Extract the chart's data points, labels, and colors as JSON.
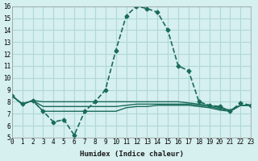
{
  "xlabel": "Humidex (Indice chaleur)",
  "background_color": "#d6efef",
  "grid_color": "#b0d8d8",
  "line_color": "#1a6b5a",
  "ylim": [
    5,
    16
  ],
  "xlim": [
    0,
    23
  ],
  "yticks": [
    5,
    6,
    7,
    8,
    9,
    10,
    11,
    12,
    13,
    14,
    15,
    16
  ],
  "xticks": [
    0,
    1,
    2,
    3,
    4,
    5,
    6,
    7,
    8,
    9,
    10,
    11,
    12,
    13,
    14,
    15,
    16,
    17,
    18,
    19,
    20,
    21,
    22,
    23
  ],
  "series": [
    {
      "x": [
        0,
        1,
        2,
        3,
        4,
        5,
        6,
        7,
        8,
        9,
        10,
        11,
        12,
        13,
        14,
        15,
        16,
        17,
        18,
        19,
        20,
        21,
        22,
        23
      ],
      "y": [
        8.5,
        7.8,
        8.1,
        7.2,
        6.3,
        6.5,
        5.2,
        7.2,
        8.0,
        9.0,
        12.3,
        15.2,
        16.0,
        15.8,
        15.5,
        14.0,
        11.0,
        10.6,
        8.0,
        7.7,
        7.6,
        7.2,
        7.9,
        7.7
      ],
      "marker": "D",
      "markersize": 2.5,
      "linewidth": 1.2,
      "linestyle": "--"
    },
    {
      "x": [
        0,
        1,
        2,
        3,
        4,
        5,
        6,
        7,
        8,
        9,
        10,
        11,
        12,
        13,
        14,
        15,
        16,
        17,
        18,
        19,
        20,
        21,
        22,
        23
      ],
      "y": [
        8.5,
        7.8,
        8.1,
        8.0,
        8.0,
        8.0,
        8.0,
        8.0,
        8.0,
        8.0,
        8.0,
        8.0,
        8.0,
        8.0,
        8.0,
        8.0,
        8.0,
        7.9,
        7.8,
        7.7,
        7.5,
        7.3,
        7.7,
        7.7
      ],
      "marker": null,
      "markersize": 0,
      "linewidth": 1.0,
      "linestyle": "-"
    },
    {
      "x": [
        0,
        1,
        2,
        3,
        4,
        5,
        6,
        7,
        8,
        9,
        10,
        11,
        12,
        13,
        14,
        15,
        16,
        17,
        18,
        19,
        20,
        21,
        22,
        23
      ],
      "y": [
        8.5,
        7.8,
        8.1,
        7.2,
        7.2,
        7.2,
        7.2,
        7.2,
        7.2,
        7.2,
        7.2,
        7.5,
        7.6,
        7.6,
        7.7,
        7.7,
        7.7,
        7.7,
        7.6,
        7.5,
        7.3,
        7.2,
        7.7,
        7.7
      ],
      "marker": null,
      "markersize": 0,
      "linewidth": 1.0,
      "linestyle": "-"
    },
    {
      "x": [
        0,
        1,
        2,
        3,
        4,
        5,
        6,
        7,
        8,
        9,
        10,
        11,
        12,
        13,
        14,
        15,
        16,
        17,
        18,
        19,
        20,
        21,
        22,
        23
      ],
      "y": [
        8.5,
        7.8,
        8.1,
        7.6,
        7.6,
        7.6,
        7.6,
        7.6,
        7.6,
        7.6,
        7.6,
        7.7,
        7.8,
        7.8,
        7.8,
        7.8,
        7.8,
        7.8,
        7.7,
        7.6,
        7.4,
        7.2,
        7.7,
        7.7
      ],
      "marker": null,
      "markersize": 0,
      "linewidth": 1.0,
      "linestyle": "-"
    }
  ]
}
